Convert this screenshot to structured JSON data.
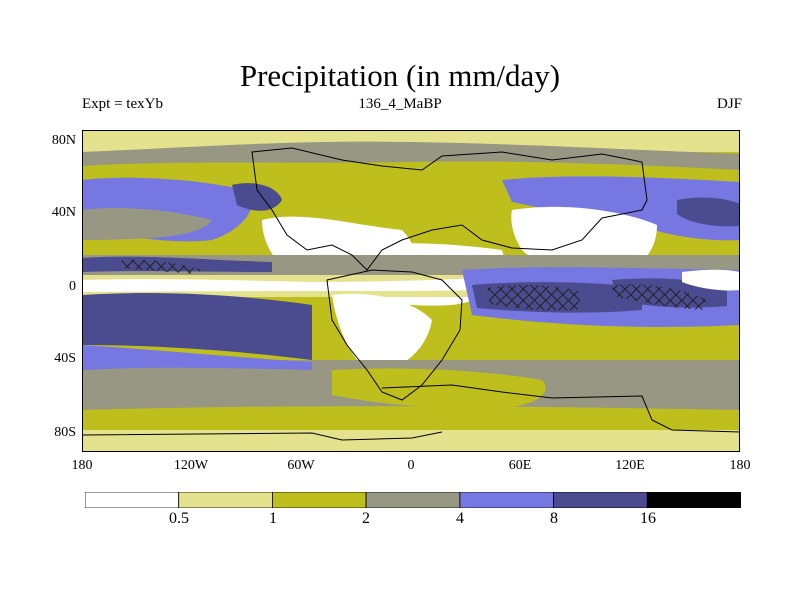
{
  "title": "Precipitation (in mm/day)",
  "left_label": "Expt = texYb",
  "center_label": "136_4_MaBP",
  "right_label": "DJF",
  "lat_ticks": [
    "80N",
    "40N",
    "0",
    "40S",
    "80S"
  ],
  "lon_ticks": [
    "180",
    "120W",
    "60W",
    "0",
    "60E",
    "120E",
    "180"
  ],
  "colorbar": {
    "labels": [
      "0.5",
      "1",
      "2",
      "4",
      "8",
      "16"
    ],
    "colors": [
      "#ffffff",
      "#e4e28c",
      "#bebe1c",
      "#979784",
      "#7777e2",
      "#4b4b8f",
      "#000000"
    ]
  },
  "colors": {
    "white": "#ffffff",
    "lightyellow": "#e4e28c",
    "olive": "#bebe1c",
    "gray": "#979784",
    "blue": "#7777e2",
    "darkblue": "#4b4b8f",
    "black": "#000000"
  }
}
